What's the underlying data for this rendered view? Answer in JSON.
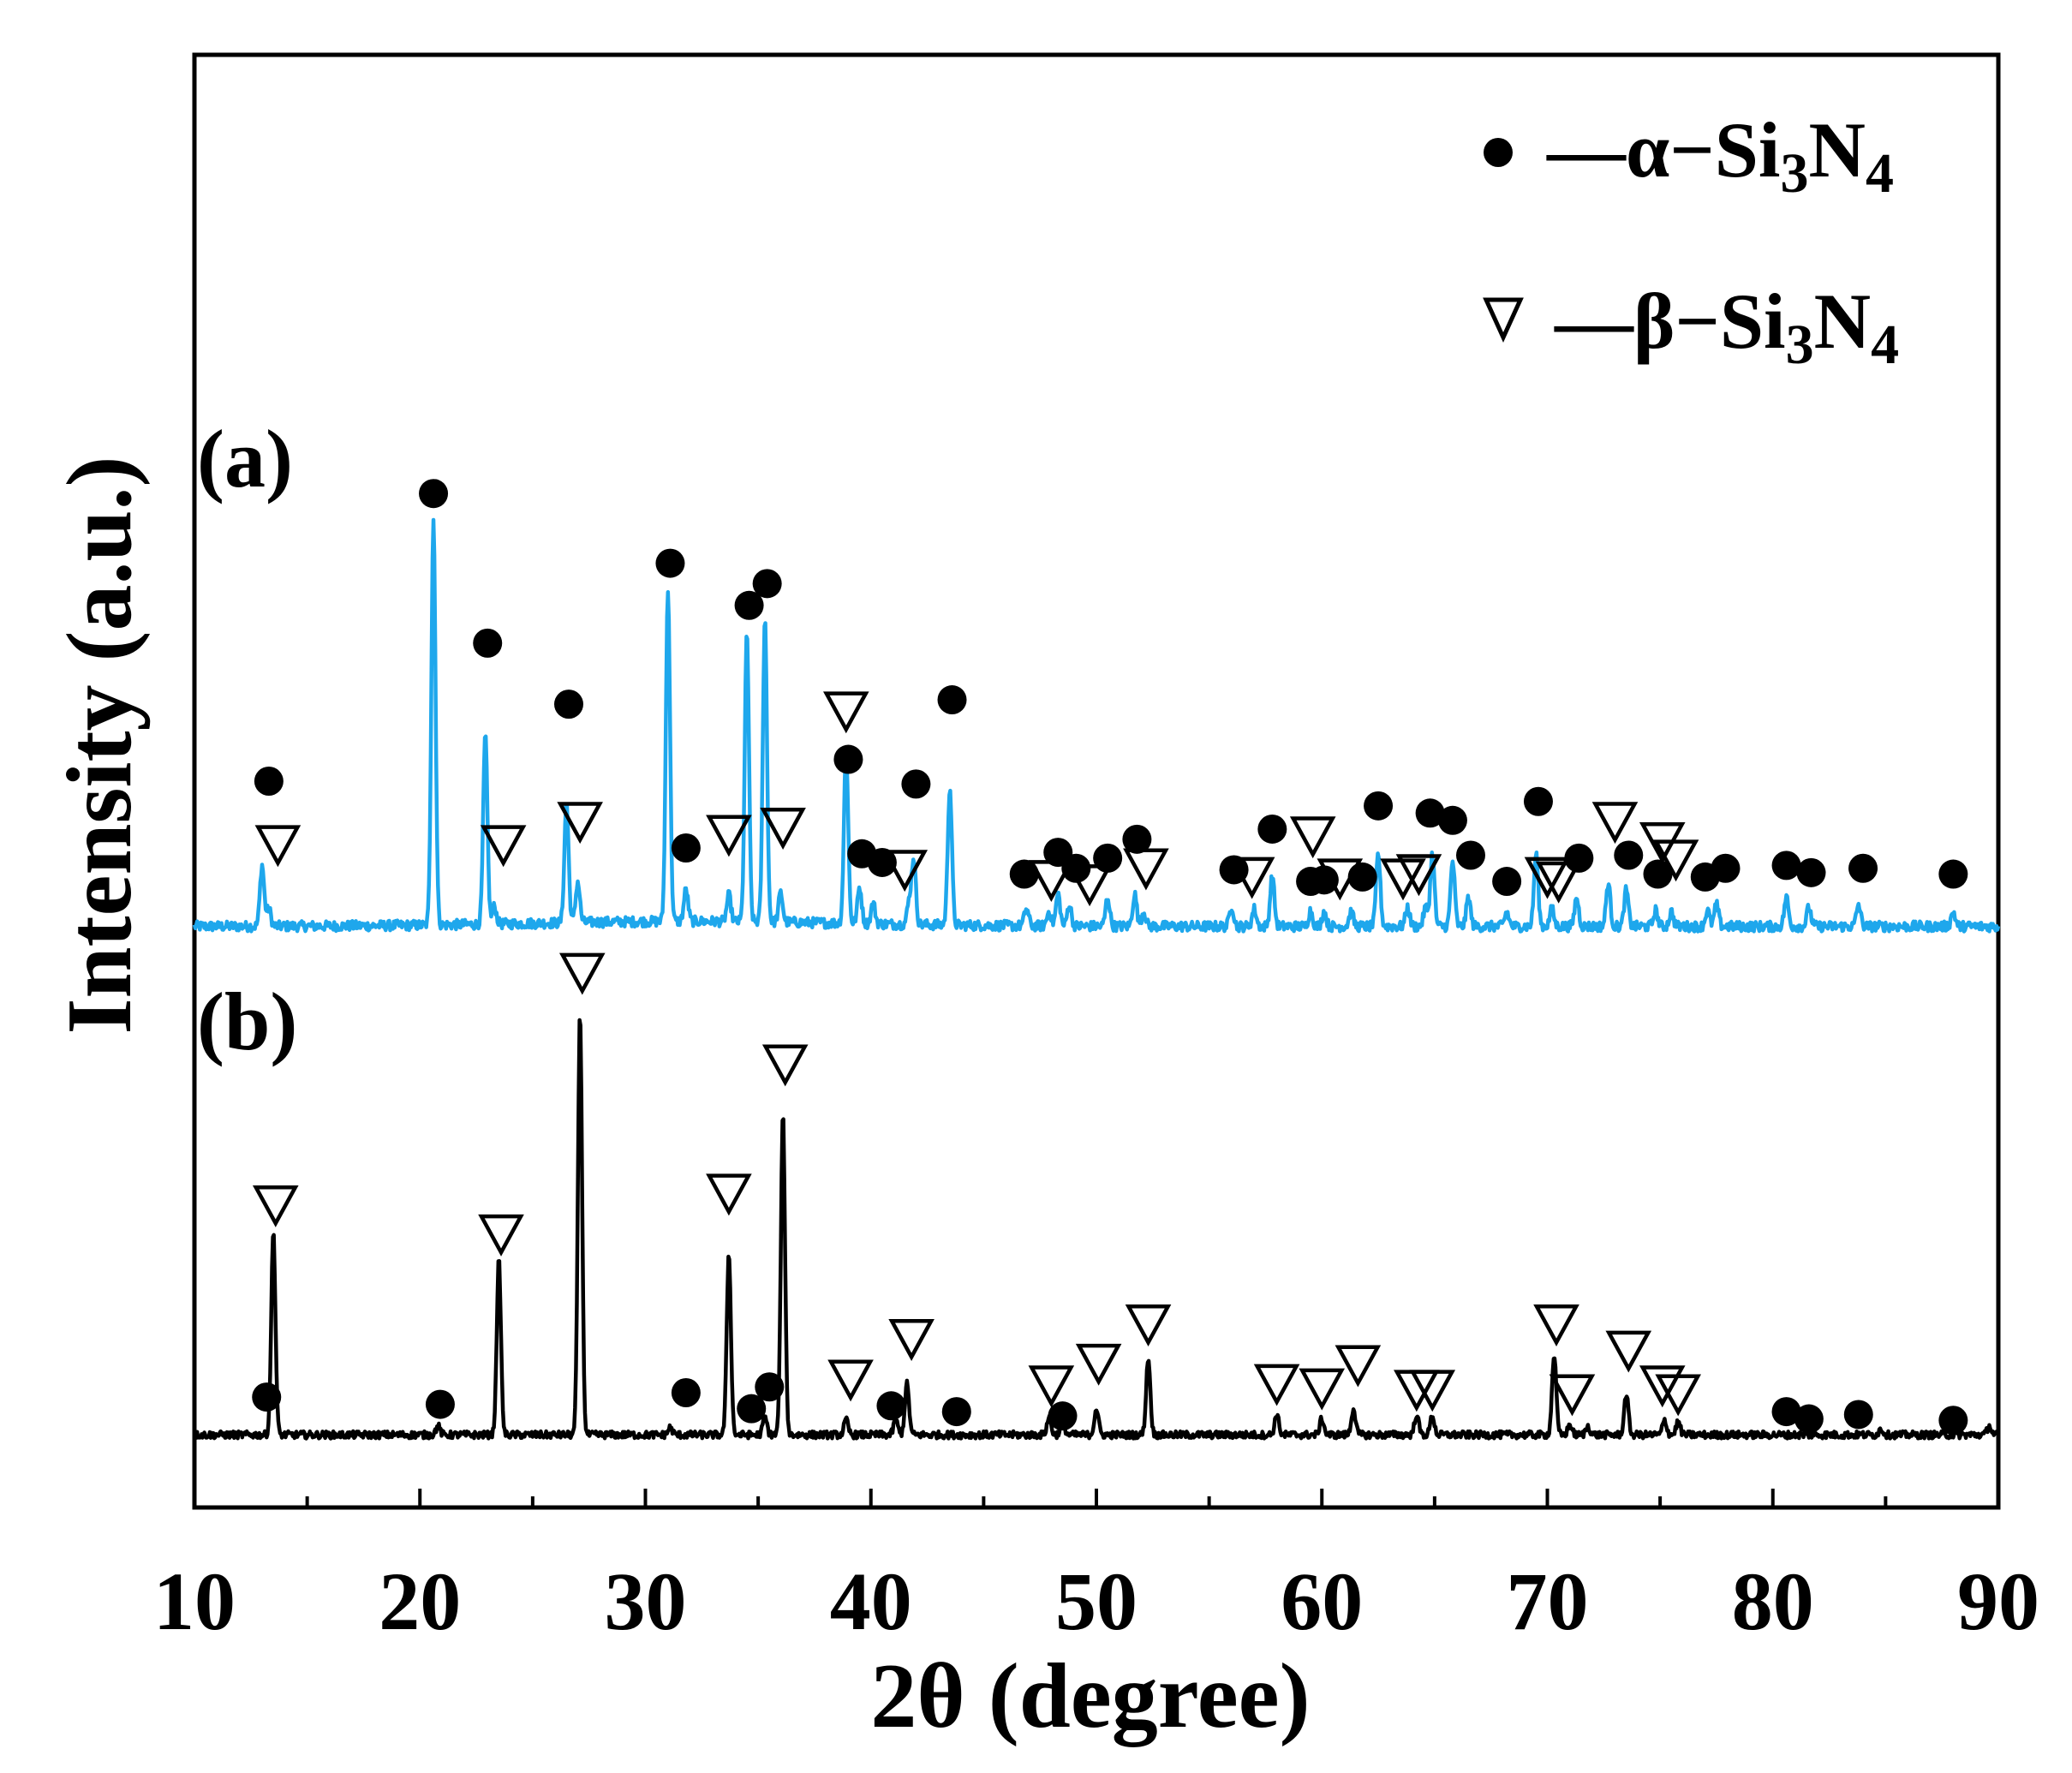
{
  "chart_data": {
    "type": "line",
    "title": "",
    "xlabel": "2θ (degree)",
    "ylabel": "Intensity (a.u.)",
    "xlim": [
      10,
      90
    ],
    "x_ticks": [
      10,
      20,
      30,
      40,
      50,
      60,
      70,
      80,
      90
    ],
    "y_ticks_shown": false,
    "ylim": [
      0,
      100
    ],
    "grid": false,
    "legend": {
      "placement": "top-right",
      "entries": [
        {
          "symbol": "filled-circle",
          "label": "α−Si3N4",
          "parts": {
            "prefix": "—α−Si",
            "sub1": "3",
            "mid": "N",
            "sub2": "4"
          }
        },
        {
          "symbol": "open-triangle-down",
          "label": "β−Si3N4",
          "parts": {
            "prefix": "—β−Si",
            "sub1": "3",
            "mid": "N",
            "sub2": "4"
          }
        }
      ]
    },
    "series": [
      {
        "name": "(a)",
        "label": "(a)",
        "color": "#1ea7ec",
        "baseline": 40,
        "noise": 0.35,
        "peaks": [
          [
            13.0,
            4.2
          ],
          [
            13.3,
            1.2
          ],
          [
            20.6,
            28.0
          ],
          [
            22.9,
            13.0
          ],
          [
            23.3,
            1.2
          ],
          [
            26.5,
            8.3
          ],
          [
            27.0,
            2.8
          ],
          [
            31.0,
            23.0
          ],
          [
            31.8,
            2.2
          ],
          [
            33.7,
            1.8
          ],
          [
            34.5,
            20.0
          ],
          [
            35.3,
            21.0
          ],
          [
            36.0,
            2.0
          ],
          [
            38.9,
            12.0
          ],
          [
            39.5,
            2.5
          ],
          [
            40.1,
            1.4
          ],
          [
            41.7,
            1.5
          ],
          [
            41.9,
            4.5
          ],
          [
            43.5,
            9.5
          ],
          [
            46.9,
            1.2
          ],
          [
            47.9,
            1.0
          ],
          [
            48.3,
            2.2
          ],
          [
            48.8,
            1.5
          ],
          [
            50.5,
            2.0
          ],
          [
            51.7,
            2.2
          ],
          [
            52.1,
            1.0
          ],
          [
            56.0,
            1.4
          ],
          [
            57.0,
            1.2
          ],
          [
            57.8,
            3.5
          ],
          [
            59.5,
            1.1
          ],
          [
            60.1,
            1.0
          ],
          [
            61.3,
            1.0
          ],
          [
            62.5,
            5.0
          ],
          [
            63.8,
            1.3
          ],
          [
            64.6,
            1.3
          ],
          [
            64.9,
            5.0
          ],
          [
            65.8,
            4.5
          ],
          [
            66.5,
            2.0
          ],
          [
            68.2,
            1.0
          ],
          [
            69.5,
            5.0
          ],
          [
            70.2,
            1.2
          ],
          [
            71.3,
            2.0
          ],
          [
            72.7,
            3.0
          ],
          [
            73.5,
            2.5
          ],
          [
            74.8,
            1.1
          ],
          [
            75.5,
            1.0
          ],
          [
            77.1,
            1.1
          ],
          [
            77.5,
            1.5
          ],
          [
            80.6,
            2.0
          ],
          [
            81.6,
            1.3
          ],
          [
            83.8,
            1.5
          ],
          [
            88.0,
            1.0
          ]
        ]
      },
      {
        "name": "(b)",
        "label": "(b)",
        "color": "#000000",
        "baseline": 5,
        "noise": 0.25,
        "peaks": [
          [
            13.5,
            14.0
          ],
          [
            20.8,
            0.6
          ],
          [
            23.5,
            12.0
          ],
          [
            27.1,
            29.0
          ],
          [
            31.1,
            0.5
          ],
          [
            33.7,
            12.5
          ],
          [
            35.3,
            1.2
          ],
          [
            36.1,
            22.0
          ],
          [
            38.9,
            1.0
          ],
          [
            41.1,
            1.0
          ],
          [
            41.6,
            3.5
          ],
          [
            47.9,
            1.2
          ],
          [
            48.5,
            1.0
          ],
          [
            50.0,
            1.8
          ],
          [
            52.3,
            5.3
          ],
          [
            58.0,
            1.4
          ],
          [
            60.0,
            1.1
          ],
          [
            61.4,
            1.8
          ],
          [
            64.2,
            1.4
          ],
          [
            64.9,
            1.3
          ],
          [
            70.3,
            5.5
          ],
          [
            71.0,
            0.7
          ],
          [
            71.8,
            0.6
          ],
          [
            73.5,
            2.8
          ],
          [
            75.2,
            1.0
          ],
          [
            75.8,
            0.9
          ],
          [
            84.8,
            0.4
          ],
          [
            89.6,
            0.6
          ]
        ]
      }
    ],
    "markers": {
      "alpha_on_a": [
        [
          13.3,
          50.0
        ],
        [
          20.6,
          69.8
        ],
        [
          23.0,
          59.5
        ],
        [
          26.6,
          55.3
        ],
        [
          31.1,
          65.0
        ],
        [
          31.8,
          45.4
        ],
        [
          34.6,
          62.1
        ],
        [
          35.4,
          63.6
        ],
        [
          39.0,
          51.5
        ],
        [
          39.6,
          45.0
        ],
        [
          40.5,
          44.4
        ],
        [
          42.0,
          49.8
        ],
        [
          43.6,
          55.6
        ],
        [
          46.8,
          43.6
        ],
        [
          48.3,
          45.1
        ],
        [
          49.1,
          44.0
        ],
        [
          50.5,
          44.7
        ],
        [
          51.8,
          46.0
        ],
        [
          56.1,
          43.9
        ],
        [
          57.8,
          46.7
        ],
        [
          59.5,
          43.1
        ],
        [
          60.1,
          43.2
        ],
        [
          61.8,
          43.4
        ],
        [
          62.5,
          48.3
        ],
        [
          64.8,
          47.8
        ],
        [
          65.8,
          47.3
        ],
        [
          66.6,
          44.9
        ],
        [
          68.2,
          43.1
        ],
        [
          69.6,
          48.6
        ],
        [
          71.4,
          44.7
        ],
        [
          73.6,
          44.9
        ],
        [
          74.9,
          43.6
        ],
        [
          77.0,
          43.4
        ],
        [
          77.9,
          44.0
        ],
        [
          80.6,
          44.2
        ],
        [
          81.7,
          43.7
        ],
        [
          84.0,
          44.0
        ],
        [
          88.0,
          43.6
        ]
      ],
      "beta_on_a": [
        [
          13.7,
          45.6
        ],
        [
          23.7,
          45.6
        ],
        [
          27.1,
          47.2
        ],
        [
          33.7,
          46.3
        ],
        [
          36.1,
          46.8
        ],
        [
          38.9,
          54.8
        ],
        [
          41.5,
          43.9
        ],
        [
          48.0,
          43.2
        ],
        [
          49.7,
          42.9
        ],
        [
          52.2,
          44.0
        ],
        [
          56.9,
          43.4
        ],
        [
          59.6,
          46.2
        ],
        [
          60.8,
          43.3
        ],
        [
          63.6,
          43.3
        ],
        [
          64.3,
          43.6
        ],
        [
          70.0,
          43.4
        ],
        [
          70.5,
          43.1
        ],
        [
          73.0,
          47.2
        ],
        [
          75.1,
          45.8
        ],
        [
          75.7,
          44.6
        ]
      ],
      "alpha_on_b": [
        [
          13.2,
          7.6
        ],
        [
          20.9,
          7.1
        ],
        [
          31.8,
          7.9
        ],
        [
          34.7,
          6.8
        ],
        [
          35.5,
          8.3
        ],
        [
          40.9,
          7.0
        ],
        [
          43.8,
          6.6
        ],
        [
          48.5,
          6.3
        ],
        [
          80.6,
          6.6
        ],
        [
          81.6,
          6.1
        ],
        [
          83.8,
          6.4
        ],
        [
          88.0,
          6.0
        ]
      ],
      "beta_on_b": [
        [
          13.6,
          20.8
        ],
        [
          23.6,
          18.8
        ],
        [
          27.2,
          36.8
        ],
        [
          33.7,
          21.6
        ],
        [
          36.2,
          30.5
        ],
        [
          39.1,
          8.8
        ],
        [
          41.8,
          11.6
        ],
        [
          48.0,
          8.4
        ],
        [
          50.1,
          9.9
        ],
        [
          52.3,
          12.6
        ],
        [
          58.0,
          8.5
        ],
        [
          60.0,
          8.2
        ],
        [
          61.6,
          9.8
        ],
        [
          64.2,
          8.1
        ],
        [
          64.9,
          8.1
        ],
        [
          70.4,
          12.6
        ],
        [
          71.1,
          7.8
        ],
        [
          73.6,
          10.8
        ],
        [
          75.1,
          8.4
        ],
        [
          75.8,
          7.8
        ]
      ]
    }
  }
}
